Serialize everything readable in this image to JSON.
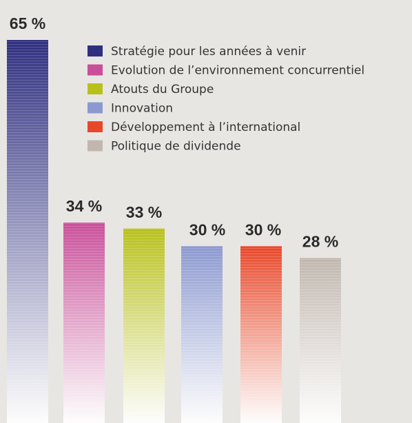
{
  "chart_data": {
    "type": "bar",
    "categories": [
      "Stratégie pour les années à venir",
      "Evolution de l’environnement concurrentiel",
      "Atouts du Groupe",
      "Innovation",
      "Développement à l’international",
      "Politique de dividende"
    ],
    "values": [
      65,
      34,
      33,
      30,
      30,
      28
    ],
    "value_labels": [
      "65 %",
      "34 %",
      "33 %",
      "30 %",
      "30 %",
      "28 %"
    ],
    "colors": [
      "#2f2f80",
      "#c94f99",
      "#b8c11c",
      "#8c99d0",
      "#e8482a",
      "#c1b7af"
    ]
  }
}
